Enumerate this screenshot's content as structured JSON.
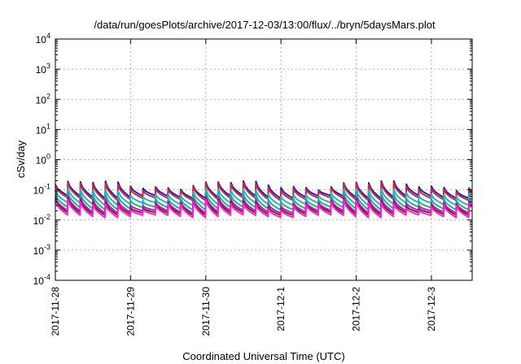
{
  "chart_data": {
    "type": "line",
    "title": "/data/run/goesPlots/archive/2017-12-03/13:00/flux/../bryn/5daysMars.plot",
    "xlabel": "Coordinated Universal Time (UTC)",
    "ylabel": "cSv/day",
    "x_axis": {
      "type": "time",
      "min": "2017-11-28T00:00",
      "max": "2017-12-03T13:00",
      "ticks": [
        "2017-11-28",
        "2017-11-29",
        "2017-11-30",
        "2017-12-1",
        "2017-12-2",
        "2017-12-3"
      ]
    },
    "y_axis": {
      "scale": "log",
      "min": 0.0001,
      "max": 10000,
      "tick_base": "10",
      "tick_exponents": [
        "-4",
        "-3",
        "-2",
        "-1",
        "0",
        "1",
        "2",
        "3",
        "4"
      ]
    },
    "grid": true,
    "legend": "none",
    "series": [
      {
        "color": "#1f1fd6",
        "peak": 0.15,
        "trough": 0.065
      },
      {
        "color": "#d62828",
        "peak": 0.13,
        "trough": 0.055
      },
      {
        "color": "#1fb5d0",
        "peak": 0.085,
        "trough": 0.038
      },
      {
        "color": "#2ab070",
        "peak": 0.06,
        "trough": 0.027
      },
      {
        "color": "#8a2be2",
        "peak": 0.045,
        "trough": 0.021
      },
      {
        "color": "#8b1a1a",
        "peak": 0.038,
        "trough": 0.018
      },
      {
        "color": "#ff1fd6",
        "peak": 0.034,
        "trough": 0.015
      }
    ],
    "sawtooth_period_hours": 4
  }
}
